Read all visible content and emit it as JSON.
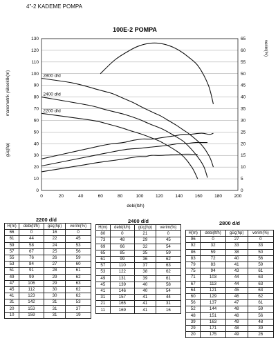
{
  "header": "4\"-2 KADEME POMPA",
  "chart_data": {
    "type": "line",
    "title": "100E-2 POMPA",
    "xlabel": "debi(lt/h)",
    "ylabel_left": "manometrik yükseklik(m)",
    "ylabel_left_lower": "güç(hp)",
    "ylabel_right": "verim(%)",
    "xlim": [
      0,
      200
    ],
    "xticks": [
      0,
      20,
      40,
      60,
      80,
      100,
      120,
      140,
      160,
      180,
      200
    ],
    "ylim_left": [
      0,
      130
    ],
    "yticks_left": [
      0,
      10,
      20,
      30,
      40,
      50,
      60,
      70,
      80,
      90,
      100,
      110,
      120,
      130
    ],
    "ylim_right": [
      0,
      65
    ],
    "yticks_right": [
      0,
      5,
      10,
      15,
      20,
      25,
      30,
      35,
      40,
      45,
      50,
      55,
      60,
      65
    ],
    "grid": true,
    "annotations": [
      "2800 d/d",
      "2400 d/d",
      "2200 d/d"
    ],
    "head_series": [
      {
        "label": "2800 d/d",
        "x": [
          0,
          32,
          59,
          72,
          83,
          94,
          103,
          113,
          121,
          129,
          137,
          144,
          151,
          163,
          171,
          175
        ],
        "y": [
          96,
          92,
          86,
          83,
          79,
          75,
          71,
          67,
          64,
          60,
          56,
          52,
          48,
          39,
          29,
          20
        ]
      },
      {
        "label": "2400 d/d",
        "x": [
          0,
          48,
          66,
          85,
          99,
          110,
          122,
          131,
          139,
          146,
          157,
          165,
          169
        ],
        "y": [
          80,
          73,
          69,
          65,
          61,
          57,
          53,
          49,
          45,
          41,
          31,
          21,
          11
        ]
      },
      {
        "label": "2200 d/d",
        "x": [
          0,
          44,
          58,
          67,
          76,
          84,
          91,
          99,
          106,
          112,
          123,
          142,
          153,
          159
        ],
        "y": [
          66,
          61,
          59,
          57,
          55,
          53,
          51,
          49,
          47,
          45,
          41,
          31,
          20,
          10
        ]
      }
    ],
    "power_series": [
      {
        "label": "2800 d/d",
        "x": [
          0,
          32,
          59,
          72,
          83,
          94,
          103,
          113,
          121,
          129,
          137,
          144,
          151,
          163,
          171,
          175
        ],
        "y": [
          27,
          33,
          38,
          40,
          41,
          43,
          44,
          44,
          45,
          46,
          47,
          48,
          48,
          49,
          48,
          49
        ]
      },
      {
        "label": "2400 d/d",
        "x": [
          0,
          48,
          66,
          85,
          99,
          110,
          122,
          131,
          139,
          146,
          157,
          165,
          169
        ],
        "y": [
          21,
          29,
          32,
          35,
          36,
          37,
          38,
          39,
          40,
          40,
          41,
          41,
          41
        ]
      },
      {
        "label": "2200 d/d",
        "x": [
          0,
          44,
          58,
          67,
          76,
          84,
          91,
          99,
          106,
          112,
          123,
          142,
          153,
          159
        ],
        "y": [
          16,
          22,
          24,
          25,
          26,
          27,
          28,
          29,
          29,
          30,
          30,
          31,
          31,
          31
        ]
      }
    ],
    "efficiency_series": {
      "x": [
        60,
        75,
        90,
        100,
        110,
        120,
        130,
        140,
        150,
        160,
        170,
        175
      ],
      "y": [
        50,
        56,
        60,
        62,
        63,
        63,
        62,
        60,
        57,
        53,
        45,
        37
      ]
    }
  },
  "tables": [
    {
      "title": "2200 d/d",
      "columns": [
        "H(m)",
        "debi(lt/h)",
        "güç(hp)",
        "verim(%)"
      ],
      "rows": [
        [
          "66",
          "0",
          "16",
          "0"
        ],
        [
          "61",
          "44",
          "22",
          "45"
        ],
        [
          "59",
          "58",
          "24",
          "53"
        ],
        [
          "57",
          "67",
          "25",
          "56"
        ],
        [
          "55",
          "76",
          "26",
          "59"
        ],
        [
          "53",
          "84",
          "27",
          "60"
        ],
        [
          "51",
          "91",
          "28",
          "61"
        ],
        [
          "49",
          "99",
          "29",
          "62"
        ],
        [
          "47",
          "106",
          "29",
          "63"
        ],
        [
          "45",
          "112",
          "30",
          "62"
        ],
        [
          "41",
          "123",
          "30",
          "62"
        ],
        [
          "31",
          "142",
          "31",
          "53"
        ],
        [
          "20",
          "153",
          "31",
          "37"
        ],
        [
          "10",
          "159",
          "31",
          "19"
        ]
      ]
    },
    {
      "title": "2400 d/d",
      "columns": [
        "H(m)",
        "debi(lt/h)",
        "güç(hp)",
        "verim(%)"
      ],
      "rows": [
        [
          "80",
          "0",
          "21",
          "0"
        ],
        [
          "73",
          "48",
          "29",
          "45"
        ],
        [
          "69",
          "66",
          "32",
          "54"
        ],
        [
          "65",
          "85",
          "35",
          "59"
        ],
        [
          "61",
          "99",
          "36",
          "62"
        ],
        [
          "57",
          "110",
          "37",
          "63"
        ],
        [
          "53",
          "122",
          "38",
          "62"
        ],
        [
          "49",
          "131",
          "39",
          "61"
        ],
        [
          "45",
          "139",
          "40",
          "58"
        ],
        [
          "41",
          "146",
          "40",
          "54"
        ],
        [
          "31",
          "157",
          "41",
          "44"
        ],
        [
          "21",
          "165",
          "41",
          "31"
        ],
        [
          "11",
          "169",
          "41",
          "16"
        ]
      ]
    },
    {
      "title": "2800 d/d",
      "columns": [
        "H(m)",
        "debi(lt/h)",
        "güç(hp)",
        "verim(%)"
      ],
      "rows": [
        [
          "96",
          "0",
          "27",
          "0"
        ],
        [
          "92",
          "32",
          "33",
          "33"
        ],
        [
          "86",
          "59",
          "38",
          "50"
        ],
        [
          "83",
          "72",
          "40",
          "56"
        ],
        [
          "79",
          "83",
          "41",
          "59"
        ],
        [
          "75",
          "94",
          "43",
          "61"
        ],
        [
          "71",
          "103",
          "44",
          "63"
        ],
        [
          "67",
          "113",
          "44",
          "63"
        ],
        [
          "64",
          "121",
          "45",
          "63"
        ],
        [
          "60",
          "129",
          "46",
          "62"
        ],
        [
          "56",
          "137",
          "47",
          "61"
        ],
        [
          "52",
          "144",
          "48",
          "59"
        ],
        [
          "48",
          "151",
          "48",
          "56"
        ],
        [
          "39",
          "163",
          "49",
          "48"
        ],
        [
          "29",
          "171",
          "48",
          "39"
        ],
        [
          "20",
          "175",
          "49",
          "26"
        ]
      ]
    }
  ]
}
